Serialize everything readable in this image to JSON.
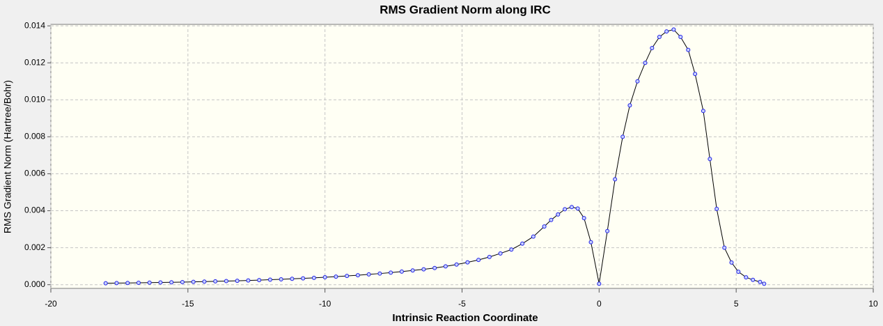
{
  "chart_data": {
    "type": "line",
    "title": "RMS Gradient Norm along IRC",
    "x_label": "Intrinsic Reaction Coordinate",
    "y_label": "RMS Gradient Norm (Hartree/Bohr)",
    "series": [
      {
        "line_color": "#000000",
        "color": "#1e1ee6",
        "marker_fill": "#c8d2ff",
        "x": [
          -18,
          -17.6,
          -17.2,
          -16.8,
          -16.4,
          -16,
          -15.6,
          -15.2,
          -14.8,
          -14.4,
          -14,
          -13.6,
          -13.2,
          -12.8,
          -12.4,
          -12,
          -11.6,
          -11.2,
          -10.8,
          -10.4,
          -10,
          -9.6,
          -9.2,
          -8.8,
          -8.4,
          -8,
          -7.6,
          -7.2,
          -6.8,
          -6.4,
          -6,
          -5.6,
          -5.2,
          -4.8,
          -4.4,
          -4,
          -3.6,
          -3.2,
          -2.8,
          -2.4,
          -2,
          -1.75,
          -1.5,
          -1.25,
          -1,
          -0.78,
          -0.55,
          -0.3,
          0,
          0.3,
          0.58,
          0.86,
          1.12,
          1.4,
          1.68,
          1.93,
          2.2,
          2.46,
          2.72,
          2.97,
          3.25,
          3.5,
          3.8,
          4.04,
          4.29,
          4.57,
          4.83,
          5.08,
          5.36,
          5.61,
          5.87,
          6.02
        ],
        "values": [
          8e-05,
          8.7e-05,
          9.4e-05,
          0.000102,
          0.00011,
          0.00012,
          0.00013,
          0.000141,
          0.000153,
          0.000166,
          0.00018,
          0.000195,
          0.000211,
          0.000229,
          0.000248,
          0.000269,
          0.000292,
          0.000316,
          0.000343,
          0.000372,
          0.000403,
          0.000437,
          0.000474,
          0.000513,
          0.000556,
          0.000603,
          0.000654,
          0.000709,
          0.000768,
          0.000833,
          0.000903,
          0.00099,
          0.00109,
          0.00121,
          0.00134,
          0.0015,
          0.00169,
          0.0019,
          0.00222,
          0.0026,
          0.00315,
          0.0035,
          0.0038,
          0.00408,
          0.0042,
          0.00412,
          0.0036,
          0.0023,
          5e-05,
          0.0029,
          0.0057,
          0.008,
          0.0097,
          0.011,
          0.012,
          0.0128,
          0.0134,
          0.0137,
          0.0138,
          0.0134,
          0.0127,
          0.0114,
          0.0094,
          0.0068,
          0.0041,
          0.002,
          0.0012,
          0.0007,
          0.0004,
          0.00026,
          0.00015,
          5e-05
        ]
      }
    ],
    "xlim": [
      -20,
      10
    ],
    "xticks": [
      -20,
      -15,
      -10,
      -5,
      0,
      5,
      10
    ],
    "ylim": [
      -0.0002,
      0.01408
    ],
    "yticks": [
      {
        "value": 0,
        "label": "0.000"
      },
      {
        "value": 0.002,
        "label": "0.002"
      },
      {
        "value": 0.004,
        "label": "0.004"
      },
      {
        "value": 0.006,
        "label": "0.006"
      },
      {
        "value": 0.008,
        "label": "0.008"
      },
      {
        "value": 0.01,
        "label": "0.010"
      },
      {
        "value": 0.012,
        "label": "0.012"
      },
      {
        "value": 0.014,
        "label": "0.014"
      }
    ],
    "grid": true
  }
}
